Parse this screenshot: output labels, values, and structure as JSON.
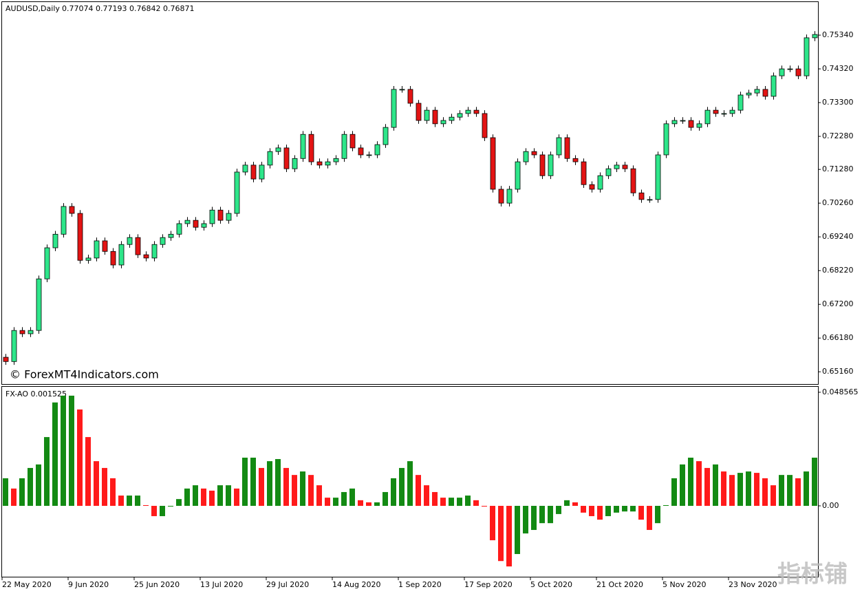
{
  "chart_data": [
    {
      "type": "candlestick",
      "title": "AUDUSD,Daily",
      "subtitle": "0.77074 0.77193 0.76842 0.76871",
      "annotation": "© ForexMT4Indicators.com",
      "categories": [
        "22 May 2020",
        null,
        null,
        null,
        null,
        null,
        null,
        null,
        "9 Jun 2020",
        null,
        null,
        null,
        null,
        null,
        null,
        null,
        "25 Jun 2020",
        null,
        null,
        null,
        null,
        null,
        null,
        null,
        "13 Jul 2020",
        null,
        null,
        null,
        null,
        null,
        null,
        null,
        "29 Jul 2020",
        null,
        null,
        null,
        null,
        null,
        null,
        null,
        "14 Aug 2020",
        null,
        null,
        null,
        null,
        null,
        null,
        null,
        "1 Sep 2020",
        null,
        null,
        null,
        null,
        null,
        null,
        null,
        "17 Sep 2020",
        null,
        null,
        null,
        null,
        null,
        null,
        null,
        "5 Oct 2020",
        null,
        null,
        null,
        null,
        null,
        null,
        null,
        "21 Oct 2020",
        null,
        null,
        null,
        null,
        null,
        null,
        null,
        "5 Nov 2020",
        null,
        null,
        null,
        null,
        null,
        null,
        null,
        "23 Nov 2020",
        null,
        null,
        null,
        null,
        null,
        null,
        null,
        null,
        null,
        null
      ],
      "open": [
        0.656,
        0.6547,
        0.6641,
        0.6631,
        0.6641,
        0.6797,
        0.6891,
        0.6932,
        0.7016,
        0.6995,
        0.6853,
        0.686,
        0.6912,
        0.688,
        0.6839,
        0.6901,
        0.6922,
        0.687,
        0.686,
        0.6901,
        0.6922,
        0.6932,
        0.6964,
        0.6974,
        0.6953,
        0.6964,
        0.7005,
        0.6974,
        0.6995,
        0.712,
        0.7141,
        0.7099,
        0.7141,
        0.7182,
        0.7193,
        0.713,
        0.7161,
        0.7234,
        0.7151,
        0.7141,
        0.7151,
        0.7161,
        0.7234,
        0.7193,
        0.7172,
        0.7172,
        0.7203,
        0.7255,
        0.737,
        0.737,
        0.7328,
        0.7276,
        0.7307,
        0.7266,
        0.7276,
        0.7286,
        0.7297,
        0.7307,
        0.7297,
        0.7224,
        0.7068,
        0.7026,
        0.7068,
        0.7151,
        0.7182,
        0.7172,
        0.7109,
        0.7172,
        0.7224,
        0.7161,
        0.7151,
        0.7082,
        0.7068,
        0.7109,
        0.713,
        0.7141,
        0.713,
        0.7057,
        0.7037,
        0.7037,
        0.7172,
        0.7266,
        0.7276,
        0.7276,
        0.7255,
        0.7266,
        0.7307,
        0.7297,
        0.7297,
        0.7307,
        0.7353,
        0.7359,
        0.737,
        0.7349,
        0.7411,
        0.7432,
        0.7432,
        0.7411,
        0.7526
      ],
      "high": [
        0.657,
        0.6651,
        0.6651,
        0.6651,
        0.6807,
        0.6901,
        0.6942,
        0.7026,
        0.7026,
        0.7005,
        0.687,
        0.6922,
        0.6922,
        0.689,
        0.6911,
        0.6932,
        0.6932,
        0.688,
        0.6911,
        0.6932,
        0.6942,
        0.6974,
        0.6984,
        0.6984,
        0.6974,
        0.7015,
        0.7015,
        0.7005,
        0.713,
        0.7151,
        0.7151,
        0.7151,
        0.7192,
        0.7203,
        0.7203,
        0.7171,
        0.7244,
        0.7244,
        0.7161,
        0.7161,
        0.7171,
        0.7244,
        0.7244,
        0.7203,
        0.7182,
        0.7213,
        0.7265,
        0.738,
        0.738,
        0.738,
        0.7338,
        0.7317,
        0.7317,
        0.7286,
        0.7296,
        0.7307,
        0.7317,
        0.7317,
        0.7307,
        0.7234,
        0.7078,
        0.7078,
        0.7161,
        0.7192,
        0.7192,
        0.7182,
        0.7182,
        0.7234,
        0.7234,
        0.7171,
        0.7161,
        0.7092,
        0.7119,
        0.714,
        0.7151,
        0.7151,
        0.714,
        0.7067,
        0.7047,
        0.7182,
        0.7276,
        0.7286,
        0.7286,
        0.7286,
        0.7276,
        0.7317,
        0.7317,
        0.7307,
        0.7317,
        0.7363,
        0.7369,
        0.738,
        0.738,
        0.7421,
        0.7442,
        0.7442,
        0.7442,
        0.7536,
        0.7546
      ],
      "low": [
        0.6537,
        0.6537,
        0.6621,
        0.6621,
        0.6631,
        0.6787,
        0.6881,
        0.6922,
        0.6985,
        0.6843,
        0.6843,
        0.685,
        0.687,
        0.6829,
        0.6829,
        0.6891,
        0.686,
        0.685,
        0.685,
        0.6891,
        0.6912,
        0.6922,
        0.6954,
        0.6943,
        0.6943,
        0.6954,
        0.6964,
        0.6964,
        0.6985,
        0.711,
        0.7089,
        0.7089,
        0.7131,
        0.7172,
        0.712,
        0.712,
        0.7151,
        0.7141,
        0.7131,
        0.7131,
        0.7141,
        0.7151,
        0.7183,
        0.7162,
        0.7162,
        0.7162,
        0.7193,
        0.7245,
        0.736,
        0.7318,
        0.7266,
        0.7266,
        0.7256,
        0.7256,
        0.7266,
        0.7276,
        0.7287,
        0.7287,
        0.7214,
        0.7058,
        0.7016,
        0.7016,
        0.7058,
        0.7141,
        0.7162,
        0.7099,
        0.7099,
        0.7162,
        0.7151,
        0.7141,
        0.7072,
        0.7058,
        0.7058,
        0.7099,
        0.712,
        0.712,
        0.7047,
        0.7027,
        0.7027,
        0.7027,
        0.7162,
        0.7256,
        0.7266,
        0.7245,
        0.7245,
        0.7256,
        0.7287,
        0.7287,
        0.7287,
        0.7297,
        0.7343,
        0.7349,
        0.7339,
        0.7339,
        0.7401,
        0.7422,
        0.7401,
        0.7401,
        0.7516
      ],
      "close": [
        0.6547,
        0.6641,
        0.6631,
        0.6641,
        0.6797,
        0.6891,
        0.6932,
        0.7016,
        0.6995,
        0.6853,
        0.686,
        0.6912,
        0.688,
        0.6839,
        0.6901,
        0.6922,
        0.687,
        0.686,
        0.6901,
        0.6922,
        0.6932,
        0.6964,
        0.6974,
        0.6953,
        0.6964,
        0.7005,
        0.6974,
        0.6995,
        0.712,
        0.7141,
        0.7099,
        0.7141,
        0.7182,
        0.7193,
        0.713,
        0.7161,
        0.7234,
        0.7151,
        0.7141,
        0.7151,
        0.7161,
        0.7234,
        0.7193,
        0.7172,
        0.7172,
        0.7203,
        0.7255,
        0.737,
        0.737,
        0.7328,
        0.7276,
        0.7307,
        0.7266,
        0.7276,
        0.7286,
        0.7297,
        0.7307,
        0.7297,
        0.7224,
        0.7068,
        0.7026,
        0.7068,
        0.7151,
        0.7182,
        0.7172,
        0.7109,
        0.7172,
        0.7224,
        0.7161,
        0.7151,
        0.7082,
        0.7068,
        0.7109,
        0.713,
        0.7141,
        0.713,
        0.7057,
        0.7037,
        0.7037,
        0.7172,
        0.7266,
        0.7276,
        0.7276,
        0.7255,
        0.7266,
        0.7307,
        0.7297,
        0.7297,
        0.7307,
        0.7353,
        0.7359,
        0.737,
        0.7349,
        0.7411,
        0.7432,
        0.7432,
        0.7411,
        0.7526,
        0.7536
      ],
      "up_color": "#2ee68a",
      "down_color": "#e31414",
      "ylim": [
        0.6479,
        0.7634
      ],
      "yticks": [
        {
          "value": 0.7534,
          "label": "0.75340"
        },
        {
          "value": 0.7432,
          "label": "0.74320"
        },
        {
          "value": 0.733,
          "label": "0.73300"
        },
        {
          "value": 0.7228,
          "label": "0.72280"
        },
        {
          "value": 0.7128,
          "label": "0.71280"
        },
        {
          "value": 0.7026,
          "label": "0.70260"
        },
        {
          "value": 0.6924,
          "label": "0.69240"
        },
        {
          "value": 0.6822,
          "label": "0.68220"
        },
        {
          "value": 0.672,
          "label": "0.67200"
        },
        {
          "value": 0.6618,
          "label": "0.66180"
        },
        {
          "value": 0.6516,
          "label": "0.65160"
        }
      ]
    },
    {
      "type": "histogram-oscillator",
      "title": "FX-AO 0.001525",
      "values": [
        0.0118,
        0.0074,
        0.0118,
        0.0162,
        0.0177,
        0.0294,
        0.0442,
        0.0471,
        0.0471,
        0.0412,
        0.0294,
        0.0191,
        0.0162,
        0.0118,
        0.0044,
        0.0044,
        0.0044,
        0.0003,
        -0.0044,
        -0.0044,
        -0.0003,
        0.0029,
        0.0074,
        0.0088,
        0.0074,
        0.0065,
        0.0088,
        0.0088,
        0.0074,
        0.0206,
        0.0206,
        0.0162,
        0.0191,
        0.02,
        0.0162,
        0.0132,
        0.0147,
        0.0132,
        0.0088,
        0.0035,
        0.0035,
        0.0059,
        0.0074,
        0.0024,
        0.0015,
        0.0015,
        0.0059,
        0.0118,
        0.0162,
        0.0191,
        0.0132,
        0.0088,
        0.0059,
        0.0035,
        0.0035,
        0.0035,
        0.0044,
        0.0024,
        -0.0003,
        -0.0147,
        -0.0236,
        -0.0259,
        -0.0206,
        -0.0118,
        -0.0103,
        -0.0074,
        -0.0074,
        -0.0035,
        0.0024,
        0.0015,
        -0.0029,
        -0.0044,
        -0.0059,
        -0.0044,
        -0.0029,
        -0.0024,
        -0.0024,
        -0.0059,
        -0.0103,
        -0.0074,
        0.0003,
        0.0118,
        0.0177,
        0.0206,
        0.0191,
        0.0162,
        0.0177,
        0.0147,
        0.0132,
        0.0141,
        0.0147,
        0.0141,
        0.0118,
        0.0088,
        0.0132,
        0.0132,
        0.0118,
        0.0147,
        0.0206
      ],
      "up_color": "#138a13",
      "down_color": "#ff1a1a",
      "ylim": [
        -0.0303,
        0.0509
      ],
      "yticks": [
        0.048565,
        {
          "value": 0,
          "label": "0.00"
        }
      ]
    }
  ],
  "watermark": "指标铺"
}
